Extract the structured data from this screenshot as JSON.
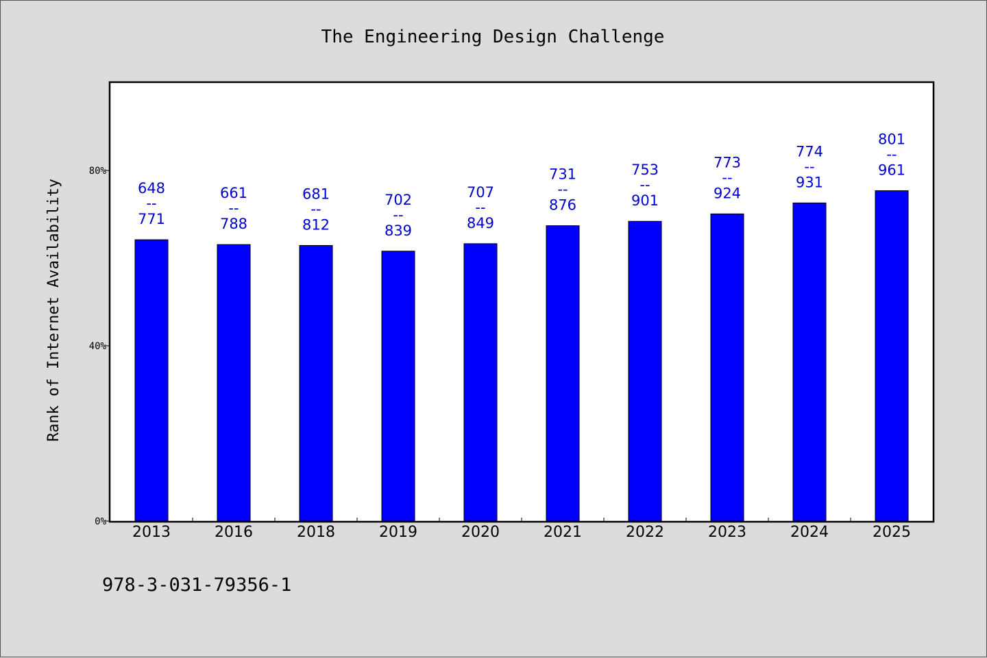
{
  "chart_data": {
    "type": "bar",
    "title": "The Engineering Design Challenge",
    "ylabel": "Rank of Internet Availability",
    "xlabel": "",
    "categories": [
      "2013",
      "2016",
      "2018",
      "2019",
      "2020",
      "2021",
      "2022",
      "2023",
      "2024",
      "2025"
    ],
    "values": [
      64.2,
      63.1,
      62.9,
      61.6,
      63.3,
      67.4,
      68.4,
      70.1,
      72.6,
      75.4
    ],
    "labels_top": [
      "648",
      "661",
      "681",
      "702",
      "707",
      "731",
      "753",
      "773",
      "774",
      "801"
    ],
    "labels_sep": "--",
    "labels_bottom": [
      "771",
      "788",
      "812",
      "839",
      "849",
      "876",
      "901",
      "924",
      "931",
      "961"
    ],
    "ylim": [
      0,
      100
    ],
    "yticks": [
      0,
      40,
      80
    ],
    "ytick_labels": [
      "0%",
      "40%",
      "80%"
    ],
    "bar_color": "#0000ff",
    "label_color": "#0000cc",
    "grid": false,
    "legend": "none"
  },
  "footer": {
    "isbn": "978-3-031-79356-1"
  }
}
